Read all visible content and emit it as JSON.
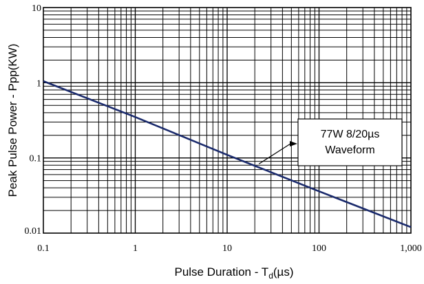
{
  "chart_data": {
    "type": "line",
    "title": "",
    "xscale": "log",
    "yscale": "log",
    "xlim": [
      0.1,
      1000
    ],
    "ylim": [
      0.01,
      10
    ],
    "grid": true,
    "x_tick_labels": [
      "0.1",
      "1",
      "10",
      "100",
      "1,000"
    ],
    "x_tick_values": [
      0.1,
      1,
      10,
      100,
      1000
    ],
    "y_tick_labels": [
      "0.01",
      "0.1",
      "1",
      "10"
    ],
    "y_tick_values": [
      0.01,
      0.1,
      1,
      10
    ],
    "xlabel": {
      "main": "Pulse Duration  - T",
      "sub": "d",
      "unit": "(µs)"
    },
    "ylabel": "Peak Pulse Power - Ppp(KW)",
    "series": [
      {
        "x": [
          0.1,
          1,
          10,
          100,
          1000
        ],
        "y": [
          1.05,
          0.35,
          0.11,
          0.036,
          0.012
        ],
        "color": "#1a2a6c"
      }
    ],
    "annotation": {
      "lines": [
        "77W 8/20µs",
        "Waveform"
      ],
      "points_to": {
        "x": 20,
        "y": 0.075
      }
    }
  }
}
